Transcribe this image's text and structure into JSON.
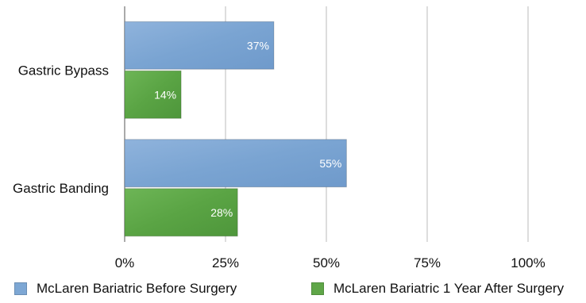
{
  "chart_data": {
    "type": "bar",
    "orientation": "horizontal",
    "categories": [
      "Gastric Bypass",
      "Gastric Banding"
    ],
    "series": [
      {
        "name": "McLaren Bariatric Before Surgery",
        "values": [
          37,
          55
        ],
        "labels": [
          "37%",
          "55%"
        ],
        "color": "#7da7d4"
      },
      {
        "name": "McLaren Bariatric 1 Year After Surgery",
        "values": [
          14,
          28
        ],
        "labels": [
          "14%",
          "28%"
        ],
        "color": "#5fa648"
      }
    ],
    "xlim": [
      0,
      100
    ],
    "xticks": [
      0,
      25,
      50,
      75,
      100
    ],
    "xtick_labels": [
      "0%",
      "25%",
      "50%",
      "75%",
      "100%"
    ],
    "grid": true,
    "legend_position": "bottom",
    "title": "",
    "xlabel": "",
    "ylabel": ""
  }
}
